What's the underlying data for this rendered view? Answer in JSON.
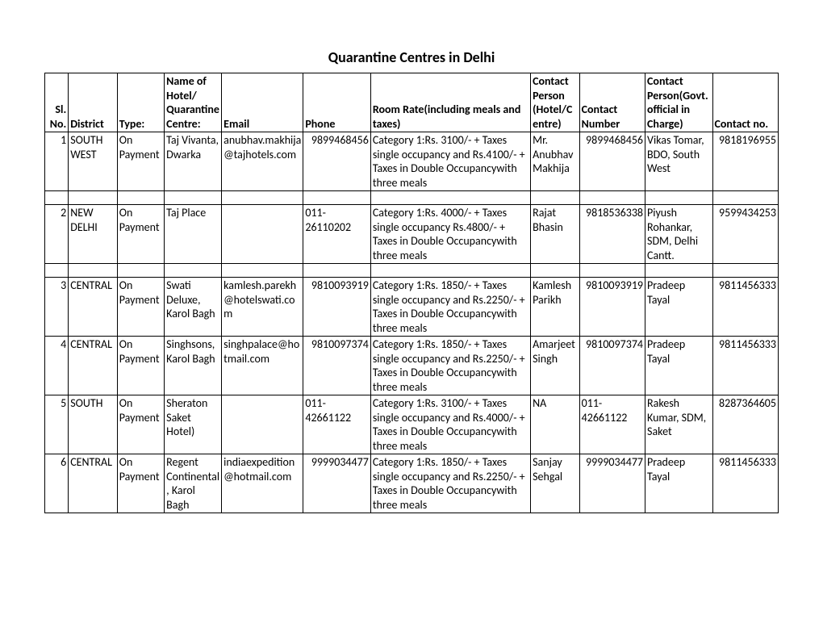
{
  "title": "Quarantine Centres in Delhi",
  "columns": [
    "Sl. No.",
    "District",
    "Type:",
    "Name of Hotel/ Quarantine Centre:",
    "Email",
    "Phone",
    "Room Rate(including meals and taxes)",
    "Contact Person (Hotel/Centre)",
    "Contact Number",
    "Contact Person(Govt. official in Charge)",
    "Contact no."
  ],
  "rows": [
    {
      "no": "1",
      "district": "SOUTH WEST",
      "type": "On Payment",
      "name": "Taj Vivanta, Dwarka",
      "email": "anubhav.makhija@tajhotels.com",
      "phone": "9899468456",
      "rate": "Category 1:Rs. 3100/- + Taxes single occupancy and Rs.4100/- + Taxes in Double Occupancywith three meals",
      "cp": "Mr. Anubhav Makhija",
      "cn": "9899468456",
      "gov": "Vikas Tomar, BDO, South West",
      "cn2": "9818196955",
      "spacer_after": true
    },
    {
      "no": "2",
      "district": "NEW DELHI",
      "type": "On Payment",
      "name": "Taj Place",
      "email": "",
      "phone": "011-26110202",
      "rate": "Category 1:Rs. 4000/- + Taxes single occupancy Rs.4800/- + Taxes in Double Occupancywith three meals",
      "cp": "Rajat Bhasin",
      "cn": "9818536338",
      "gov": "Piyush Rohankar, SDM, Delhi Cantt.",
      "cn2": "9599434253",
      "spacer_after": true
    },
    {
      "no": "3",
      "district": "CENTRAL",
      "type": "On Payment",
      "name": "Swati Deluxe, Karol Bagh",
      "email": "kamlesh.parekh@hotelswati.com",
      "phone": "9810093919",
      "rate": "Category 1:Rs. 1850/- + Taxes single occupancy and Rs.2250/- + Taxes in Double Occupancywith three meals",
      "cp": "Kamlesh Parikh",
      "cn": "9810093919",
      "gov": "Pradeep Tayal",
      "cn2": "9811456333",
      "spacer_after": false
    },
    {
      "no": "4",
      "district": "CENTRAL",
      "type": "On Payment",
      "name": "Singhsons, Karol Bagh",
      "email": "singhpalace@hotmail.com",
      "phone": "9810097374",
      "rate": "Category 1:Rs. 1850/- + Taxes single occupancy and Rs.2250/- + Taxes in Double Occupancywith three meals",
      "cp": "Amarjeet Singh",
      "cn": "9810097374",
      "gov": "Pradeep Tayal",
      "cn2": "9811456333",
      "spacer_after": false
    },
    {
      "no": "5",
      "district": "SOUTH",
      "type": "On Payment",
      "name": "Sheraton Saket Hotel)",
      "email": "",
      "phone": "011-42661122",
      "rate": "Category 1:Rs. 3100/- + Taxes single occupancy and Rs.4000/- + Taxes in Double Occupancywith three meals",
      "cp": "NA",
      "cn": "011-42661122",
      "gov": "Rakesh Kumar, SDM, Saket",
      "cn2": "8287364605",
      "spacer_after": false
    },
    {
      "no": "6",
      "district": "CENTRAL",
      "type": "On Payment",
      "name": "Regent Continental, Karol Bagh",
      "email": "indiaexpedition@hotmail.com",
      "phone": "9999034477",
      "rate": "Category 1:Rs. 1850/- + Taxes single occupancy and Rs.2250/- + Taxes in Double Occupancywith three meals",
      "cp": "Sanjay Sehgal",
      "cn": "9999034477",
      "gov": "Pradeep Tayal",
      "cn2": "9811456333",
      "spacer_after": false
    }
  ],
  "phone_left_align_rows": [
    "2",
    "5"
  ],
  "cn_left_align_rows": [
    "5"
  ]
}
